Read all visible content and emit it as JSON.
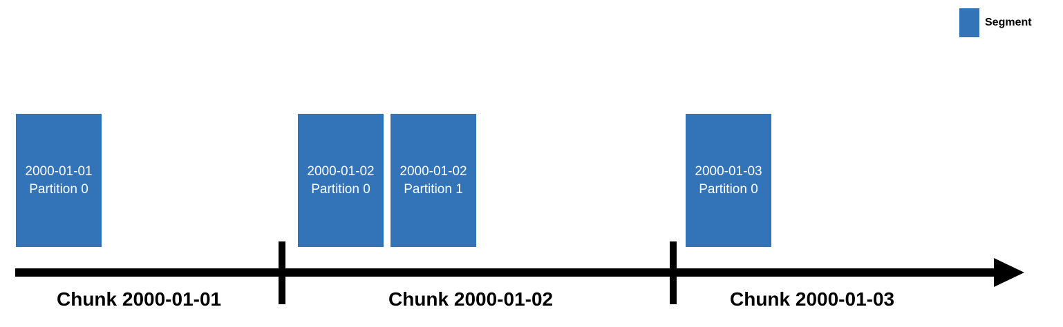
{
  "legend": {
    "label": "Segment",
    "color": "#3274b7"
  },
  "segments": [
    {
      "date": "2000-01-01",
      "partition": "Partition 0"
    },
    {
      "date": "2000-01-02",
      "partition": "Partition 0"
    },
    {
      "date": "2000-01-02",
      "partition": "Partition 1"
    },
    {
      "date": "2000-01-03",
      "partition": "Partition 0"
    }
  ],
  "chunks": [
    {
      "label": "Chunk 2000-01-01"
    },
    {
      "label": "Chunk 2000-01-02"
    },
    {
      "label": "Chunk 2000-01-03"
    }
  ],
  "colors": {
    "segment_fill": "#3274b7",
    "segment_text": "#ffffff",
    "timeline": "#000000"
  }
}
